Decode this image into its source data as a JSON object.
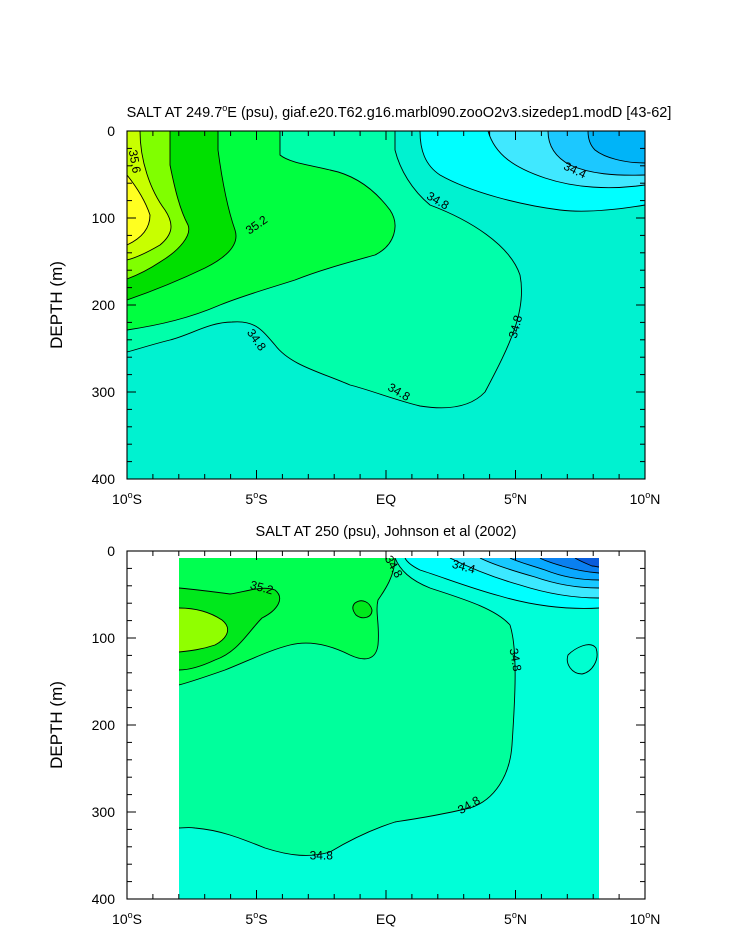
{
  "chart_data": [
    {
      "type": "heatmap",
      "title": "SALT AT 249.7°E (psu), giaf.e20.T62.g16.marbl090.zooO2v3.sizedep1.modD [43-62]",
      "title_main": "SALT AT 249.7",
      "title_sup": "o",
      "title_rest": "E (psu), giaf.e20.T62.g16.marbl090.zooO2v3.sizedep1.modD [43-62]",
      "ylabel": "DEPTH (m)",
      "xlim": [
        -10,
        10
      ],
      "ylim": [
        400,
        0
      ],
      "x_ticks": [
        {
          "value": -10,
          "num": "10",
          "deg": "o",
          "hem": "S"
        },
        {
          "value": -5,
          "num": "5",
          "deg": "o",
          "hem": "S"
        },
        {
          "value": 0,
          "num": "EQ",
          "deg": "",
          "hem": ""
        },
        {
          "value": 5,
          "num": "5",
          "deg": "o",
          "hem": "N"
        },
        {
          "value": 10,
          "num": "10",
          "deg": "o",
          "hem": "N"
        }
      ],
      "y_ticks": [
        "0",
        "100",
        "200",
        "300",
        "400"
      ],
      "y_tick_values": [
        0,
        100,
        200,
        300,
        400
      ],
      "data_extent": [
        -10,
        10
      ],
      "contour_labels": [
        {
          "text": "35.6",
          "x": -9.7,
          "y": 35,
          "angle": 80
        },
        {
          "text": "35.2",
          "x": -5,
          "y": 108,
          "angle": -35
        },
        {
          "text": "34.8",
          "x": 2,
          "y": 80,
          "angle": 30
        },
        {
          "text": "34.4",
          "x": 7.3,
          "y": 45,
          "angle": 25
        },
        {
          "text": "34.8",
          "x": 5,
          "y": 225,
          "angle": -75
        },
        {
          "text": "34.8",
          "x": -5,
          "y": 240,
          "angle": 55
        },
        {
          "text": "34.8",
          "x": 0.5,
          "y": 300,
          "angle": 30
        }
      ]
    },
    {
      "type": "heatmap",
      "title": "SALT AT 250 (psu), Johnson et al (2002)",
      "title_main": "SALT AT 250 (psu), Johnson et al (2002)",
      "title_sup": "",
      "title_rest": "",
      "ylabel": "DEPTH (m)",
      "xlim": [
        -10,
        10
      ],
      "ylim": [
        400,
        0
      ],
      "x_ticks": [
        {
          "value": -10,
          "num": "10",
          "deg": "o",
          "hem": "S"
        },
        {
          "value": -5,
          "num": "5",
          "deg": "o",
          "hem": "S"
        },
        {
          "value": 0,
          "num": "EQ",
          "deg": "",
          "hem": ""
        },
        {
          "value": 5,
          "num": "5",
          "deg": "o",
          "hem": "N"
        },
        {
          "value": 10,
          "num": "10",
          "deg": "o",
          "hem": "N"
        }
      ],
      "y_ticks": [
        "0",
        "100",
        "200",
        "300",
        "400"
      ],
      "y_tick_values": [
        0,
        100,
        200,
        300,
        400
      ],
      "data_extent": [
        -8,
        8.2
      ],
      "contour_labels": [
        {
          "text": "35.2",
          "x": -4.8,
          "y": 42,
          "angle": 15
        },
        {
          "text": "34.8",
          "x": 0.3,
          "y": 18,
          "angle": 60
        },
        {
          "text": "34.4",
          "x": 3,
          "y": 18,
          "angle": 15
        },
        {
          "text": "34.8",
          "x": 5,
          "y": 125,
          "angle": 80
        },
        {
          "text": "34.8",
          "x": 3.2,
          "y": 292,
          "angle": -30
        },
        {
          "text": "34.8",
          "x": -2.5,
          "y": 350,
          "angle": 0
        }
      ]
    }
  ]
}
